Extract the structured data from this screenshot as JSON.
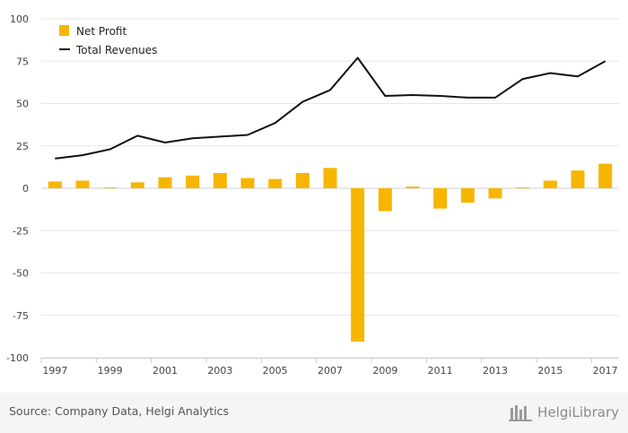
{
  "chart_data": {
    "type": "bar+line",
    "title": "",
    "xlabel": "",
    "ylabel": "",
    "ylim": [
      -100,
      100
    ],
    "yticks": [
      100,
      75,
      50,
      25,
      0,
      -25,
      -50,
      -75,
      -100
    ],
    "categories": [
      1997,
      1998,
      1999,
      2000,
      2001,
      2002,
      2003,
      2004,
      2005,
      2006,
      2007,
      2008,
      2009,
      2010,
      2011,
      2012,
      2013,
      2014,
      2015,
      2016,
      2017
    ],
    "xtick_labels": [
      "1997",
      "1999",
      "2001",
      "2003",
      "2005",
      "2007",
      "2009",
      "2011",
      "2013",
      "2015",
      "2017"
    ],
    "legend_position": "top-left",
    "series": [
      {
        "name": "Net Profit",
        "type": "bar",
        "color": "#f7b500",
        "values": [
          4.0,
          4.5,
          0.5,
          3.5,
          6.5,
          7.5,
          9.0,
          6.0,
          5.5,
          9.0,
          12.0,
          -90.5,
          -13.5,
          1.0,
          -12.0,
          -8.5,
          -6.0,
          0.5,
          4.5,
          10.5,
          14.5
        ]
      },
      {
        "name": "Total Revenues",
        "type": "line",
        "color": "#111111",
        "values": [
          17.5,
          19.5,
          23.0,
          31.0,
          27.0,
          29.5,
          30.5,
          31.5,
          38.5,
          51.0,
          58.0,
          77.0,
          54.5,
          55.0,
          54.5,
          53.5,
          53.5,
          64.5,
          68.0,
          66.0,
          75.0
        ]
      }
    ]
  },
  "legend": {
    "net_profit": "Net Profit",
    "total_revenues": "Total Revenues"
  },
  "footer": {
    "source": "Source: Company Data, Helgi Analytics",
    "brand": "HelgiLibrary"
  },
  "colors": {
    "bar": "#f7b500",
    "line": "#111111",
    "grid": "#e6e6e6",
    "axis": "#cccccc"
  }
}
